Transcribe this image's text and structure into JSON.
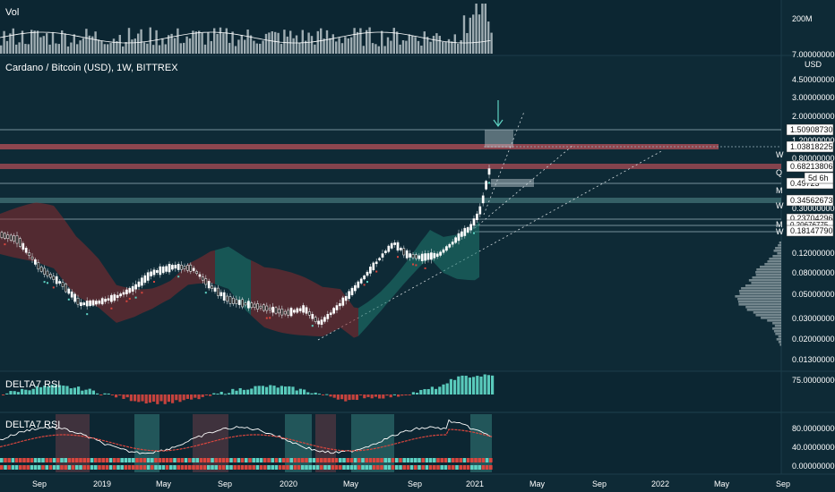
{
  "header": {
    "vol_label": "Vol",
    "main_title": "Cardano / Bitcoin (USD), 1W, BITTREX",
    "rsi_label_1": "DELTA7 RSI",
    "rsi_label_2": "DELTA7 RSI"
  },
  "colors": {
    "bg": "#0e2a36",
    "up": "#5ed3c3",
    "down": "#d9463e",
    "cloud_red": "#8b2a2e",
    "cloud_teal": "#1f7a70",
    "axis_text": "#ffffff",
    "grid": "#183744"
  },
  "chart_data": {
    "type": "candlestick",
    "scale": "log",
    "currency": "USD",
    "vol_axis": [
      "200M",
      "7.00000000"
    ],
    "price_axis_ticks": [
      "4.50000000",
      "3.00000000",
      "2.00000000",
      "1.20000000",
      "0.80000000",
      "0.30000000",
      "0.12000000",
      "0.08000000",
      "0.05000000",
      "0.03000000",
      "0.02000000",
      "0.01300000"
    ],
    "price_tags": [
      "1.50908730",
      "1.03818225",
      "0.68213806",
      "0.49723",
      "0.34562673",
      "0.23704296",
      "0.20676775",
      "0.18147790"
    ],
    "countdown": "5d 6h",
    "level_markers": [
      "W",
      "Q",
      "M",
      "W",
      "M",
      "W"
    ],
    "rsi1_axis": [
      "75.00000000"
    ],
    "rsi2_axis": [
      "80.00000000",
      "40.00000000",
      "0.00000000"
    ],
    "x_ticks": [
      "Sep",
      "2019",
      "May",
      "Sep",
      "2020",
      "May",
      "Sep",
      "2021",
      "May",
      "Sep",
      "2022",
      "May",
      "Sep"
    ]
  }
}
